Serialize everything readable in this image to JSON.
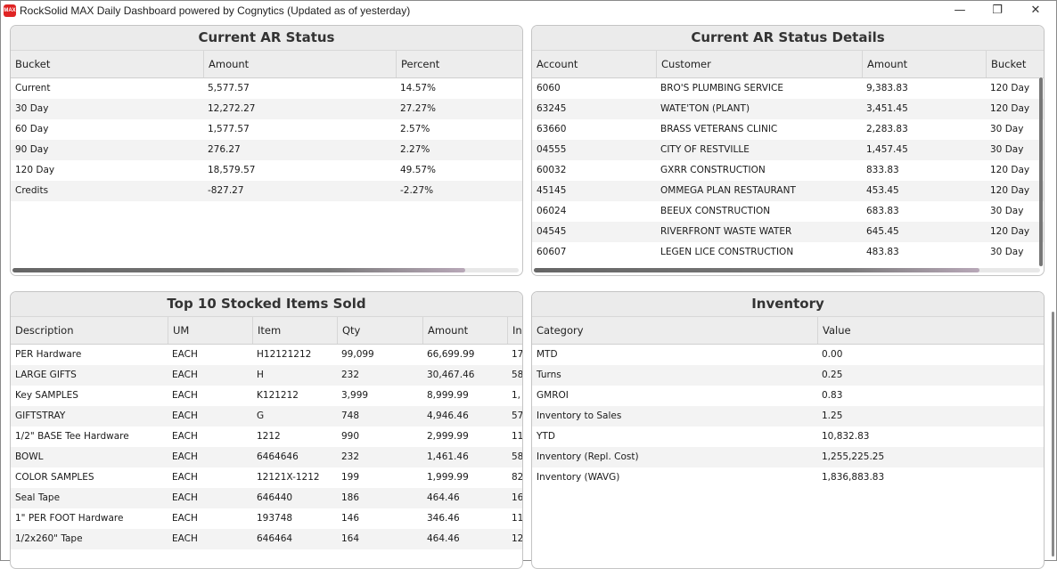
{
  "window": {
    "title": "RockSolid MAX Daily Dashboard powered by Cognytics (Updated as of yesterday)",
    "icon_label": "MAX",
    "minimize_glyph": "—",
    "maximize_glyph": "❐",
    "close_glyph": "✕"
  },
  "ar_status": {
    "title": "Current AR Status",
    "columns": [
      "Bucket",
      "Amount",
      "Percent"
    ],
    "rows": [
      [
        "Current",
        "5,577.57",
        "14.57%"
      ],
      [
        "30 Day",
        "12,272.27",
        "27.27%"
      ],
      [
        "60 Day",
        "1,577.57",
        "2.57%"
      ],
      [
        "90 Day",
        "276.27",
        "2.27%"
      ],
      [
        "120 Day",
        "18,579.57",
        "49.57%"
      ],
      [
        "Credits",
        "-827.27",
        "-2.27%"
      ]
    ]
  },
  "ar_details": {
    "title": "Current AR Status Details",
    "columns": [
      "Account",
      "Customer",
      "Amount",
      "Bucket"
    ],
    "rows": [
      [
        "6060",
        "BRO'S PLUMBING SERVICE",
        "9,383.83",
        "120 Day"
      ],
      [
        "63245",
        "WATE'TON (PLANT)",
        "3,451.45",
        "120 Day"
      ],
      [
        "63660",
        "BRASS VETERANS CLINIC",
        "2,283.83",
        "30 Day"
      ],
      [
        "04555",
        "CITY OF RESTVILLE",
        "1,457.45",
        "30 Day"
      ],
      [
        "60032",
        "GXRR CONSTRUCTION",
        "833.83",
        "120 Day"
      ],
      [
        "45145",
        "OMMEGA PLAN RESTAURANT",
        "453.45",
        "120 Day"
      ],
      [
        "06024",
        "BEEUX CONSTRUCTION",
        "683.83",
        "30 Day"
      ],
      [
        "04545",
        "RIVERFRONT WASTE WATER",
        "645.45",
        "120 Day"
      ],
      [
        "60607",
        "LEGEN LICE CONSTRUCTION",
        "483.83",
        "30 Day"
      ]
    ]
  },
  "top_items": {
    "title": "Top 10 Stocked Items Sold",
    "columns": [
      "Description",
      "UM",
      "Item",
      "Qty",
      "Amount",
      "Inv"
    ],
    "rows": [
      [
        "PER  Hardware",
        "EACH",
        "H12121212",
        "99,099",
        "66,699.99",
        "17"
      ],
      [
        "LARGE GIFTS",
        "EACH",
        "H",
        "232",
        "30,467.46",
        "58"
      ],
      [
        "Key SAMPLES",
        "EACH",
        "K121212",
        "3,999",
        "8,999.99",
        "1,"
      ],
      [
        "GIFTSTRAY",
        "EACH",
        "G",
        "748",
        "4,946.46",
        "57"
      ],
      [
        "1/2\" BASE Tee Hardware",
        "EACH",
        "1212",
        "990",
        "2,999.99",
        "11"
      ],
      [
        "BOWL",
        "EACH",
        "6464646",
        "232",
        "1,461.46",
        "58"
      ],
      [
        "COLOR SAMPLES",
        "EACH",
        "12121X-1212",
        "199",
        "1,999.99",
        "82"
      ],
      [
        "Seal Tape",
        "EACH",
        "646440",
        "186",
        "464.46",
        "16"
      ],
      [
        "1\" PER FOOT  Hardware",
        "EACH",
        "193748",
        "146",
        "346.46",
        "11"
      ],
      [
        "1/2x260\" Tape",
        "EACH",
        "646464",
        "164",
        "464.46",
        "12"
      ]
    ]
  },
  "inventory": {
    "title": "Inventory",
    "columns": [
      "Category",
      "Value"
    ],
    "rows": [
      [
        "MTD",
        "0.00"
      ],
      [
        "Turns",
        "0.25"
      ],
      [
        "GMROI",
        "0.83"
      ],
      [
        "Inventory to Sales",
        "1.25"
      ],
      [
        "YTD",
        "10,832.83"
      ],
      [
        "Inventory (Repl. Cost)",
        "1,255,225.25"
      ],
      [
        "Inventory (WAVG)",
        "1,836,883.83"
      ]
    ]
  }
}
